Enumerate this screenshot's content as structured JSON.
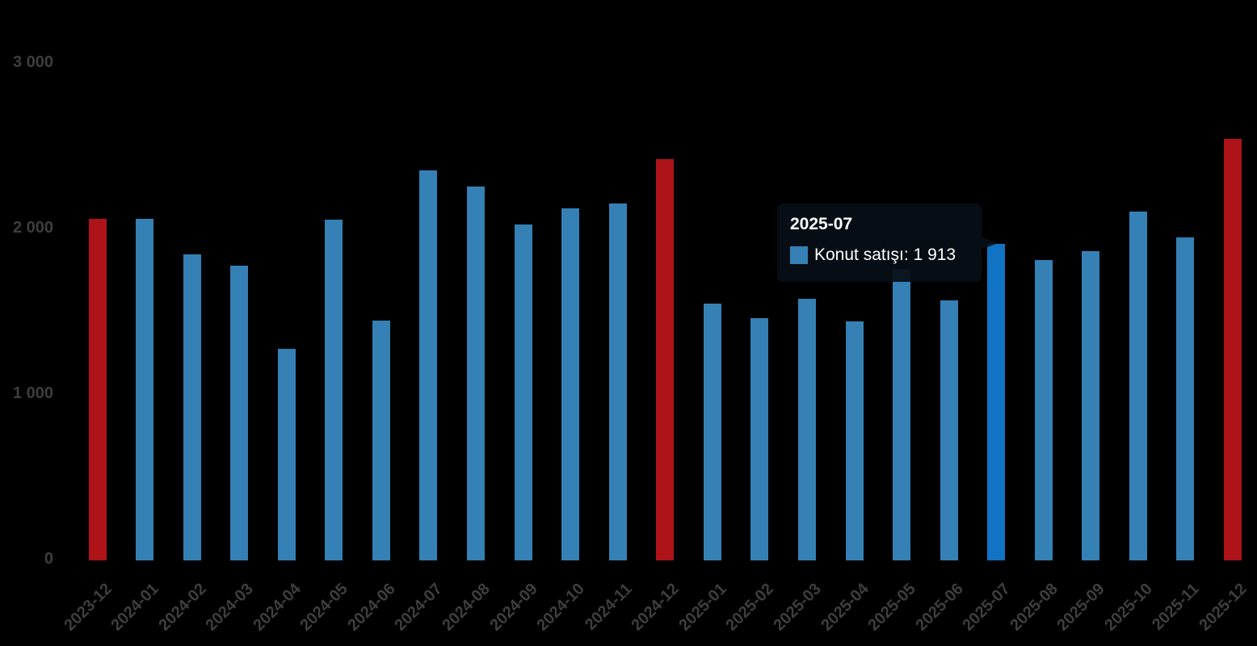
{
  "chart_data": {
    "type": "bar",
    "title": "",
    "xlabel": "",
    "ylabel": "",
    "series_name": "Konut satışı",
    "categories": [
      "2023-12",
      "2024-01",
      "2024-02",
      "2024-03",
      "2024-04",
      "2024-05",
      "2024-06",
      "2024-07",
      "2024-08",
      "2024-09",
      "2024-10",
      "2024-11",
      "2024-12",
      "2025-01",
      "2025-02",
      "2025-03",
      "2025-04",
      "2025-05",
      "2025-06",
      "2025-07",
      "2025-08",
      "2025-09",
      "2025-10",
      "2025-11",
      "2025-12"
    ],
    "values": [
      2065,
      2065,
      1850,
      1780,
      1280,
      2060,
      1450,
      2355,
      2260,
      2030,
      2125,
      2155,
      2425,
      1550,
      1465,
      1580,
      1445,
      1760,
      1570,
      1913,
      1815,
      1870,
      2110,
      1950,
      2545
    ],
    "highlighted_red_categories": [
      "2023-12",
      "2024-12",
      "2025-12"
    ],
    "hovered_category": "2025-07",
    "hovered_value_exact": "1 913",
    "ylim": [
      0,
      3000
    ],
    "ytick_values": [
      0,
      1000,
      2000,
      3000
    ],
    "ytick_labels": [
      "0",
      "1 000",
      "2 000",
      "3 000"
    ],
    "grid": "off",
    "legend_position": "none"
  },
  "tooltip": {
    "title": "2025-07",
    "series_label": "Konut satışı",
    "value": "1 913",
    "text": "Konut satışı: 1 913"
  },
  "colors": {
    "background": "#000000",
    "bar_blue": "#3580b5",
    "bar_red": "#ae1319",
    "bar_hover_blue": "#1173c4",
    "axis_label": "#3e3e3e",
    "tooltip_text": "#ffffff",
    "tooltip_marker": "#3580b5"
  }
}
